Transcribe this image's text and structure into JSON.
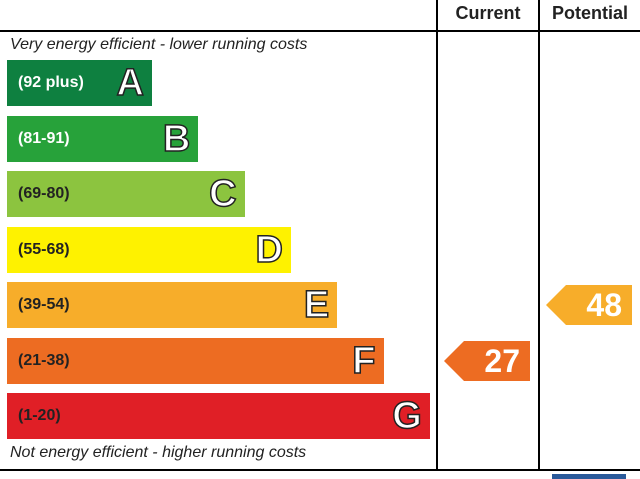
{
  "chart_data": {
    "type": "bar",
    "columns": [
      "Current",
      "Potential"
    ],
    "top_note": "Very energy efficient - lower running costs",
    "bottom_note": "Not energy efficient - higher running costs",
    "bands": [
      {
        "range": "(92 plus)",
        "letter": "A",
        "min": 92,
        "max": 100,
        "color": "#0e8040",
        "text_color": "#ffffff"
      },
      {
        "range": "(81-91)",
        "letter": "B",
        "min": 81,
        "max": 91,
        "color": "#27a23a",
        "text_color": "#ffffff"
      },
      {
        "range": "(69-80)",
        "letter": "C",
        "min": 69,
        "max": 80,
        "color": "#8cc43f",
        "text_color": "#222222"
      },
      {
        "range": "(55-68)",
        "letter": "D",
        "min": 55,
        "max": 68,
        "color": "#fef200",
        "text_color": "#222222"
      },
      {
        "range": "(39-54)",
        "letter": "E",
        "min": 39,
        "max": 54,
        "color": "#f7ad2a",
        "text_color": "#222222"
      },
      {
        "range": "(21-38)",
        "letter": "F",
        "min": 21,
        "max": 38,
        "color": "#ed6c22",
        "text_color": "#222222"
      },
      {
        "range": "(1-20)",
        "letter": "G",
        "min": 1,
        "max": 20,
        "color": "#e01f26",
        "text_color": "#222222"
      }
    ],
    "ratings": [
      {
        "column": "Current",
        "value": 27,
        "band": "F",
        "color": "#ed6c22"
      },
      {
        "column": "Potential",
        "value": 48,
        "band": "E",
        "color": "#f7ad2a"
      }
    ]
  }
}
